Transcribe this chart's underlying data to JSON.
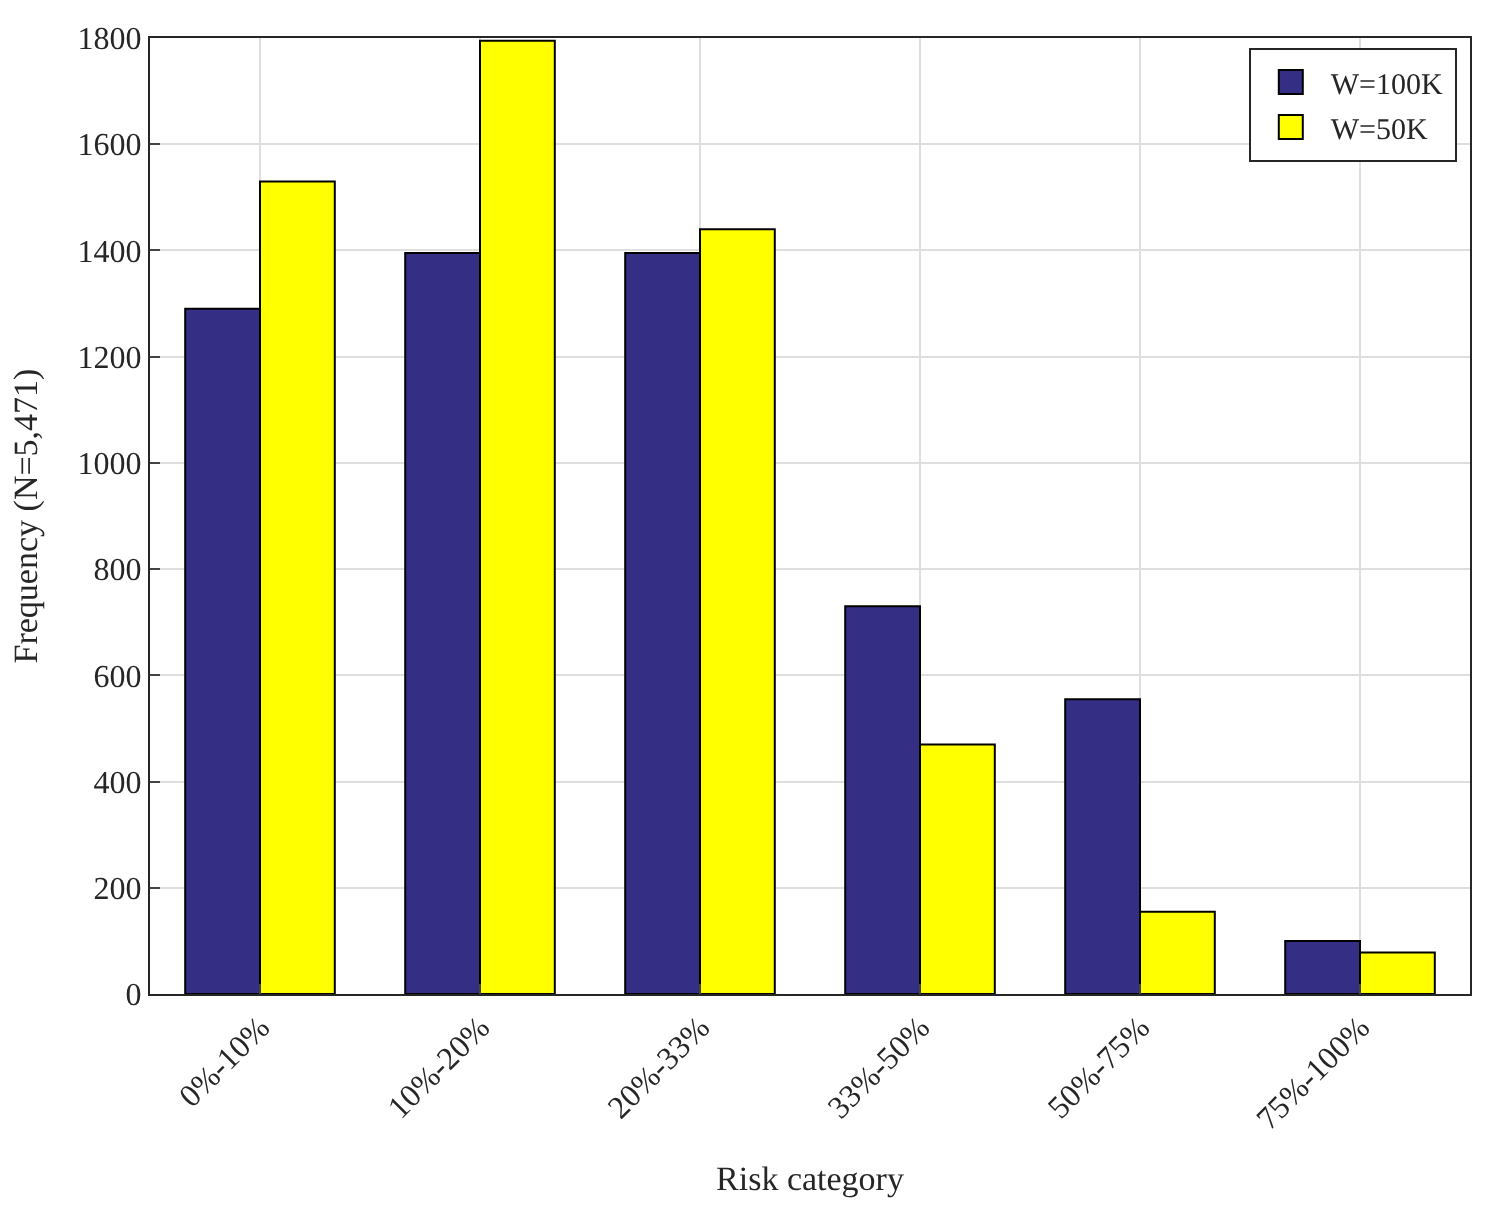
{
  "chart_data": {
    "type": "bar",
    "xlabel": "Risk category",
    "ylabel": "Frequency (N=5,471)",
    "categories": [
      "0%-10%",
      "10%-20%",
      "20%-33%",
      "33%-50%",
      "50%-75%",
      "75%-100%"
    ],
    "series": [
      {
        "name": "W=100K",
        "color": "#342f85",
        "values": [
          1290,
          1395,
          1395,
          730,
          555,
          100
        ]
      },
      {
        "name": "W=50K",
        "color": "#ffff00",
        "values": [
          1530,
          1795,
          1440,
          470,
          155,
          78
        ]
      }
    ],
    "ylim": [
      0,
      1800
    ],
    "yticks": [
      0,
      200,
      400,
      600,
      800,
      1000,
      1200,
      1400,
      1600,
      1800
    ],
    "grid": true,
    "legend": "top right"
  }
}
